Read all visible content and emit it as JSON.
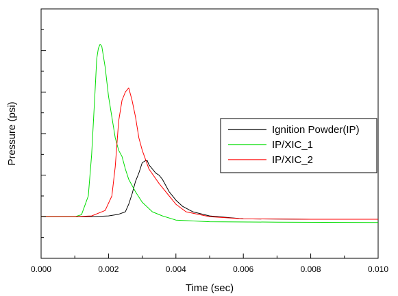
{
  "chart_data": {
    "type": "line",
    "title": "",
    "xlabel": "Time (sec)",
    "ylabel": "Pressure (psi)",
    "xlim": [
      0,
      0.01
    ],
    "ylim": [
      -1.0,
      5.0
    ],
    "x_ticks": [
      "0.000",
      "0.002",
      "0.004",
      "0.006",
      "0.008",
      "0.010"
    ],
    "y_tick_labels_shown": false,
    "grid": false,
    "legend_position": "right",
    "series": [
      {
        "name": "Ignition Powder(IP)",
        "color": "#000000",
        "points": [
          [
            0.0,
            0.0
          ],
          [
            0.001,
            0.0
          ],
          [
            0.0015,
            0.0
          ],
          [
            0.002,
            0.02
          ],
          [
            0.0023,
            0.06
          ],
          [
            0.0025,
            0.12
          ],
          [
            0.0026,
            0.3
          ],
          [
            0.0027,
            0.55
          ],
          [
            0.0028,
            0.85
          ],
          [
            0.0029,
            1.05
          ],
          [
            0.003,
            1.3
          ],
          [
            0.0031,
            1.35
          ],
          [
            0.00315,
            1.35
          ],
          [
            0.0032,
            1.25
          ],
          [
            0.0033,
            1.15
          ],
          [
            0.0034,
            1.05
          ],
          [
            0.0035,
            1.0
          ],
          [
            0.0036,
            0.9
          ],
          [
            0.0038,
            0.6
          ],
          [
            0.004,
            0.4
          ],
          [
            0.0042,
            0.25
          ],
          [
            0.0045,
            0.12
          ],
          [
            0.005,
            0.02
          ],
          [
            0.006,
            -0.05
          ],
          [
            0.008,
            -0.06
          ],
          [
            0.01,
            -0.06
          ]
        ]
      },
      {
        "name": "IP/XIC_1",
        "color": "#00dd00",
        "points": [
          [
            0.0,
            0.0
          ],
          [
            0.001,
            0.0
          ],
          [
            0.0012,
            0.05
          ],
          [
            0.0014,
            0.5
          ],
          [
            0.0015,
            1.5
          ],
          [
            0.0016,
            3.0
          ],
          [
            0.00165,
            3.8
          ],
          [
            0.0017,
            4.05
          ],
          [
            0.00175,
            4.15
          ],
          [
            0.0018,
            4.1
          ],
          [
            0.0019,
            3.6
          ],
          [
            0.002,
            2.9
          ],
          [
            0.0021,
            2.4
          ],
          [
            0.0022,
            1.9
          ],
          [
            0.0023,
            1.6
          ],
          [
            0.0024,
            1.45
          ],
          [
            0.0025,
            1.15
          ],
          [
            0.0026,
            0.9
          ],
          [
            0.0028,
            0.6
          ],
          [
            0.003,
            0.35
          ],
          [
            0.0033,
            0.12
          ],
          [
            0.0036,
            0.02
          ],
          [
            0.004,
            -0.08
          ],
          [
            0.005,
            -0.12
          ],
          [
            0.007,
            -0.13
          ],
          [
            0.01,
            -0.14
          ]
        ]
      },
      {
        "name": "IP/XIC_2",
        "color": "#ff0000",
        "points": [
          [
            0.0,
            0.0
          ],
          [
            0.001,
            0.0
          ],
          [
            0.0015,
            0.02
          ],
          [
            0.0019,
            0.15
          ],
          [
            0.0021,
            0.5
          ],
          [
            0.0022,
            1.2
          ],
          [
            0.0023,
            2.3
          ],
          [
            0.0024,
            2.8
          ],
          [
            0.0025,
            3.0
          ],
          [
            0.0026,
            3.1
          ],
          [
            0.0027,
            2.8
          ],
          [
            0.0028,
            2.4
          ],
          [
            0.0029,
            1.9
          ],
          [
            0.003,
            1.6
          ],
          [
            0.0032,
            1.15
          ],
          [
            0.0035,
            0.8
          ],
          [
            0.0038,
            0.5
          ],
          [
            0.004,
            0.3
          ],
          [
            0.0043,
            0.12
          ],
          [
            0.005,
            0.0
          ],
          [
            0.006,
            -0.05
          ],
          [
            0.008,
            -0.06
          ],
          [
            0.01,
            -0.06
          ]
        ]
      }
    ]
  }
}
